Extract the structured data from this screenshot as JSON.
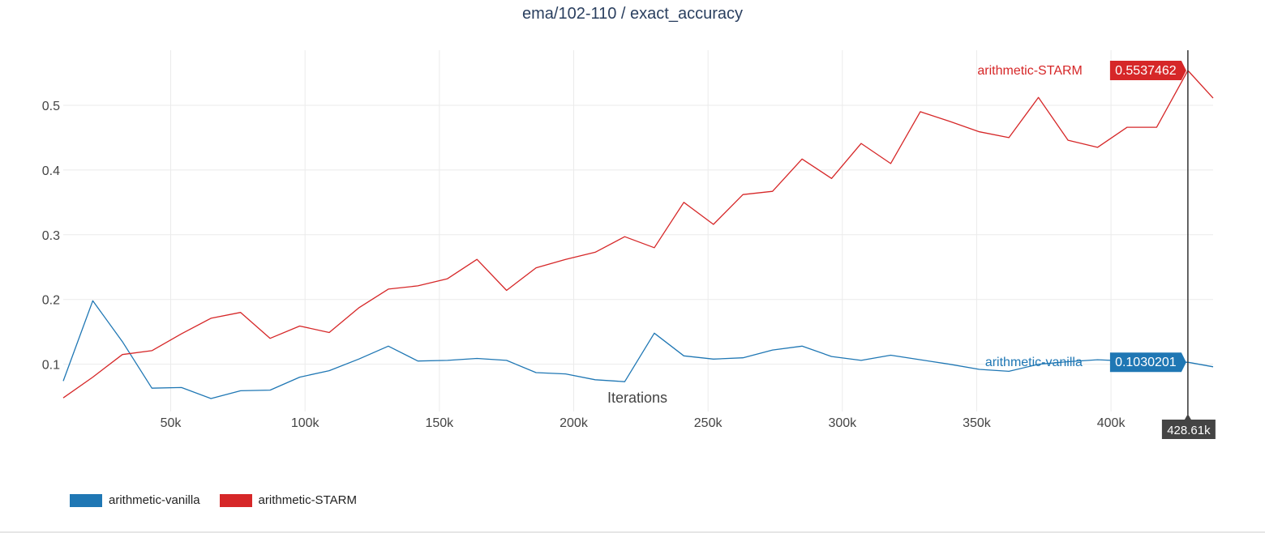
{
  "page": {
    "title": "ema/102-110 / exact_accuracy"
  },
  "hover": {
    "x_label": "428.61k",
    "x": 428610,
    "values": [
      {
        "series": "arithmetic-vanilla",
        "text": "0.1030201",
        "y": 0.1030201
      },
      {
        "series": "arithmetic-STARM",
        "text": "0.5537462",
        "y": 0.5537462
      }
    ]
  },
  "chart_data": {
    "type": "line",
    "title": "ema/102-110 / exact_accuracy",
    "xlabel": "Iterations",
    "ylabel": "",
    "xlim": [
      10000,
      438000
    ],
    "ylim": [
      0.027,
      0.585
    ],
    "x_ticks": [
      50000,
      100000,
      150000,
      200000,
      250000,
      300000,
      350000,
      400000
    ],
    "x_tick_labels": [
      "50k",
      "100k",
      "150k",
      "200k",
      "250k",
      "300k",
      "350k",
      "400k"
    ],
    "y_ticks": [
      0.1,
      0.2,
      0.3,
      0.4,
      0.5
    ],
    "y_tick_labels": [
      "0.1",
      "0.2",
      "0.3",
      "0.4",
      "0.5"
    ],
    "grid": true,
    "legend_position": "bottom-left",
    "colors": {
      "arithmetic-vanilla": "#1f77b4",
      "arithmetic-STARM": "#d62728"
    },
    "series": [
      {
        "name": "arithmetic-vanilla",
        "color": "#1f77b4",
        "x": [
          10000,
          21000,
          32000,
          43000,
          54000,
          65000,
          76000,
          87000,
          98000,
          109000,
          120000,
          131000,
          142000,
          153000,
          164000,
          175000,
          186000,
          197000,
          208000,
          219000,
          230000,
          241000,
          252000,
          263000,
          274000,
          285000,
          296000,
          307000,
          318000,
          329000,
          340000,
          351000,
          362000,
          373000,
          384000,
          395000,
          406000,
          417000,
          428610,
          438000
        ],
        "y": [
          0.074,
          0.198,
          0.135,
          0.063,
          0.064,
          0.047,
          0.059,
          0.06,
          0.08,
          0.09,
          0.108,
          0.128,
          0.105,
          0.106,
          0.109,
          0.106,
          0.087,
          0.085,
          0.076,
          0.073,
          0.148,
          0.113,
          0.108,
          0.11,
          0.122,
          0.128,
          0.112,
          0.106,
          0.114,
          0.107,
          0.1,
          0.092,
          0.089,
          0.1,
          0.104,
          0.107,
          0.105,
          0.103,
          0.1030201,
          0.096
        ]
      },
      {
        "name": "arithmetic-STARM",
        "color": "#d62728",
        "x": [
          10000,
          21000,
          32000,
          43000,
          54000,
          65000,
          76000,
          87000,
          98000,
          109000,
          120000,
          131000,
          142000,
          153000,
          164000,
          175000,
          186000,
          197000,
          208000,
          219000,
          230000,
          241000,
          252000,
          263000,
          274000,
          285000,
          296000,
          307000,
          318000,
          329000,
          340000,
          351000,
          362000,
          373000,
          384000,
          395000,
          406000,
          417000,
          428610,
          438000
        ],
        "y": [
          0.048,
          0.08,
          0.115,
          0.121,
          0.147,
          0.171,
          0.18,
          0.14,
          0.159,
          0.149,
          0.187,
          0.216,
          0.221,
          0.232,
          0.262,
          0.214,
          0.249,
          0.262,
          0.273,
          0.297,
          0.28,
          0.35,
          0.316,
          0.362,
          0.367,
          0.417,
          0.387,
          0.441,
          0.41,
          0.49,
          0.475,
          0.459,
          0.45,
          0.512,
          0.446,
          0.435,
          0.466,
          0.466,
          0.5537462,
          0.511
        ]
      }
    ]
  }
}
